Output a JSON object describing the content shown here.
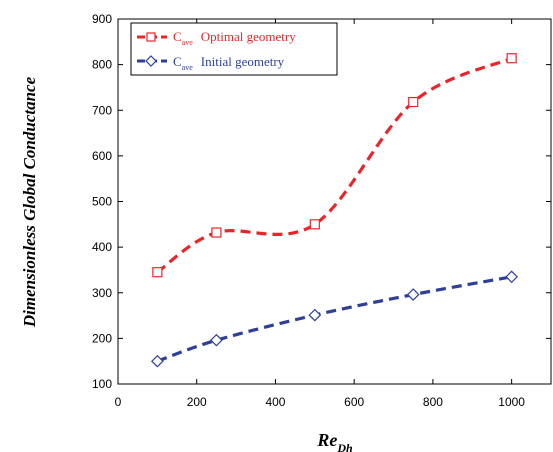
{
  "chart_data": {
    "type": "line",
    "title": "",
    "xlabel": "Re",
    "xlabel_subscript": "Dh",
    "ylabel": "Dimensionless Global Conductance",
    "xlim": [
      0,
      1100
    ],
    "ylim": [
      100,
      900
    ],
    "xticks": [
      0,
      200,
      400,
      600,
      800,
      1000
    ],
    "yticks": [
      100,
      200,
      300,
      400,
      500,
      600,
      700,
      800,
      900
    ],
    "grid": false,
    "legend_position": "top-left",
    "series": [
      {
        "name_main": "C",
        "name_sub": "ave",
        "name_rest": "Optimal geometry",
        "color": "#e8262a",
        "marker": "square",
        "x": [
          100,
          250,
          500,
          750,
          1000
        ],
        "y": [
          345,
          432,
          450,
          718,
          814
        ]
      },
      {
        "name_main": "C",
        "name_sub": "ave",
        "name_rest": "Initial geometry",
        "color": "#2e3f99",
        "marker": "diamond",
        "x": [
          100,
          250,
          500,
          750,
          1000
        ],
        "y": [
          150,
          196,
          251,
          296,
          335
        ]
      }
    ]
  }
}
